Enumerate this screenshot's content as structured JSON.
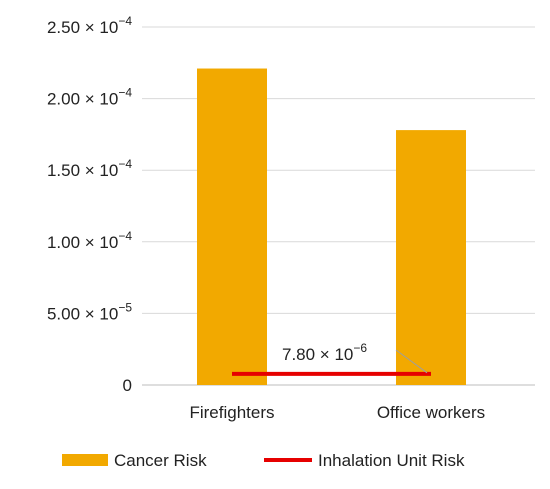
{
  "chart_data": {
    "type": "bar",
    "categories": [
      "Firefighters",
      "Office workers"
    ],
    "series": [
      {
        "name": "Cancer Risk",
        "type": "bar",
        "values": [
          0.000221,
          0.000178
        ],
        "color": "#F2A900"
      },
      {
        "name": "Inhalation Unit Risk",
        "type": "line",
        "values": [
          7.8e-06,
          7.8e-06
        ],
        "color": "#E60000"
      }
    ],
    "ylim": [
      0,
      0.00025
    ],
    "y_ticks": [
      {
        "value": 0,
        "mantissa": "0",
        "exponent": ""
      },
      {
        "value": 5e-05,
        "mantissa": "5.00",
        "exponent": "−5"
      },
      {
        "value": 0.0001,
        "mantissa": "1.00",
        "exponent": "−4"
      },
      {
        "value": 0.00015,
        "mantissa": "1.50",
        "exponent": "−4"
      },
      {
        "value": 0.0002,
        "mantissa": "2.00",
        "exponent": "−4"
      },
      {
        "value": 0.00025,
        "mantissa": "2.50",
        "exponent": "−4"
      }
    ],
    "annotation": {
      "mantissa": "7.80",
      "exponent": "−6",
      "value": 7.8e-06
    },
    "grid": true,
    "legend_position": "bottom",
    "title": "",
    "xlabel": "",
    "ylabel": ""
  }
}
